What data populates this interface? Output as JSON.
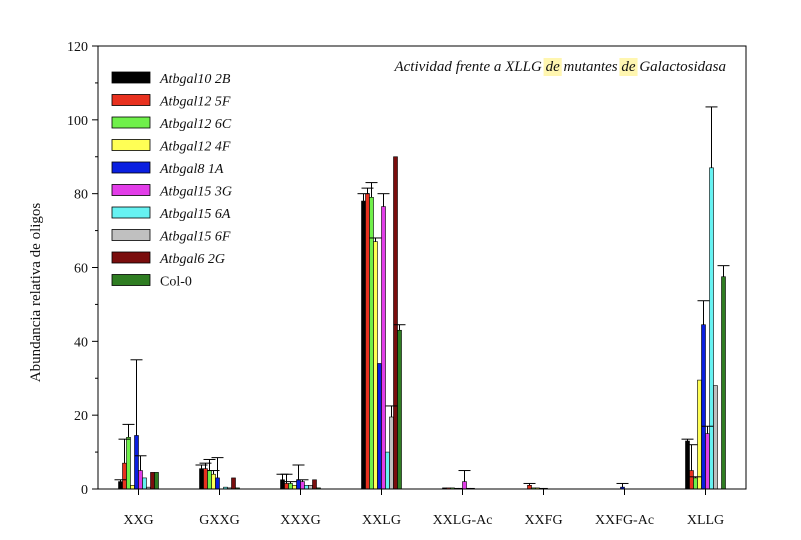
{
  "chart_data": {
    "type": "bar",
    "title": "",
    "annotation": "Actividad frente a XLLG de mutantes de Galactosidasa",
    "annotation_highlight_words": [
      "de"
    ],
    "annotation_highlight_color": "#fff6b0",
    "xlabel": "",
    "ylabel": "Abundancia relativa de oligos",
    "ylim": [
      0,
      120
    ],
    "yticks": [
      0,
      20,
      40,
      60,
      80,
      100,
      120
    ],
    "grid": false,
    "legend_position": "top-left",
    "categories": [
      "XXG",
      "GXXG",
      "XXXG",
      "XXLG",
      "XXLG-Ac",
      "XXFG",
      "XXFG-Ac",
      "XLLG"
    ],
    "series": [
      {
        "name": "Atbgal10 2B",
        "color": "#000000",
        "italic": true,
        "values": [
          2,
          5.5,
          2.5,
          78,
          0.3,
          0,
          0,
          13
        ],
        "errors": [
          0.5,
          1,
          1.5,
          2,
          0,
          0,
          0,
          0.5
        ]
      },
      {
        "name": "Atbgal12 5F",
        "color": "#e8311f",
        "italic": true,
        "values": [
          7,
          5.5,
          1.5,
          80,
          0.3,
          1,
          0,
          5
        ],
        "errors": [
          6.5,
          1.5,
          2.5,
          1.5,
          0,
          0.5,
          0,
          7
        ]
      },
      {
        "name": "Atbgal12 6C",
        "color": "#6ff04a",
        "italic": true,
        "values": [
          14,
          5,
          1.5,
          79,
          0.3,
          0.3,
          0,
          3
        ],
        "errors": [
          3.5,
          3,
          0.5,
          4,
          0,
          0,
          0,
          0.3
        ]
      },
      {
        "name": "Atbgal12 4F",
        "color": "#ffff55",
        "italic": true,
        "values": [
          1,
          4,
          1,
          67,
          0.2,
          0.3,
          0,
          29.5
        ],
        "errors": [
          0,
          1,
          0,
          1,
          0,
          0,
          0,
          0
        ]
      },
      {
        "name": "Atbgal8 1A",
        "color": "#0a1fe0",
        "italic": true,
        "values": [
          14.5,
          3,
          2.5,
          34,
          0.2,
          0.2,
          0.5,
          44.5
        ],
        "errors": [
          20.5,
          5.5,
          4,
          0,
          0,
          0,
          1,
          6.5
        ]
      },
      {
        "name": "Atbgal15 3G",
        "color": "#e23de8",
        "italic": true,
        "values": [
          5,
          0,
          2,
          76.5,
          2,
          0.2,
          0,
          15
        ],
        "errors": [
          4,
          0,
          0.5,
          3.5,
          3,
          0,
          0,
          2
        ]
      },
      {
        "name": "Atbgal15 6A",
        "color": "#66f2f2",
        "italic": true,
        "values": [
          3,
          0.5,
          1,
          10,
          0.2,
          0,
          0,
          87
        ],
        "errors": [
          0,
          0,
          0,
          0,
          0,
          0,
          0,
          16.5
        ]
      },
      {
        "name": "Atbgal15 6F",
        "color": "#c0c0c0",
        "italic": true,
        "values": [
          0.5,
          0.3,
          1,
          19.5,
          0.2,
          0,
          0,
          28
        ],
        "errors": [
          0,
          0,
          0,
          3,
          0,
          0,
          0,
          0
        ]
      },
      {
        "name": "Atbgal6 2G",
        "color": "#7a0d0d",
        "italic": true,
        "values": [
          4.5,
          3,
          2.5,
          90,
          0,
          0,
          0,
          0
        ],
        "errors": [
          0,
          0,
          0,
          0,
          0,
          0,
          0,
          0
        ]
      },
      {
        "name": "Col-0",
        "color": "#2f7d22",
        "italic": false,
        "values": [
          4.5,
          0.3,
          0.3,
          43,
          0,
          0,
          0,
          57.5
        ],
        "errors": [
          0,
          0,
          0,
          1.5,
          0,
          0,
          0,
          3
        ]
      }
    ]
  }
}
